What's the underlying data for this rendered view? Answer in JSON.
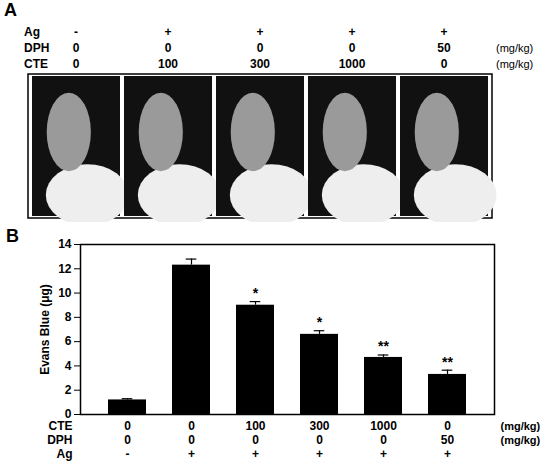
{
  "panel_a": {
    "letter": "A",
    "rows": [
      {
        "label": "Ag",
        "values": [
          "-",
          "+",
          "+",
          "+",
          "+"
        ]
      },
      {
        "label": "DPH",
        "values": [
          0,
          0,
          0,
          0,
          50
        ],
        "unit": "(mg/kg)"
      },
      {
        "label": "CTE",
        "values": [
          0,
          100,
          300,
          1000,
          0
        ],
        "unit": "(mg/kg)"
      }
    ]
  },
  "chart_data": {
    "type": "bar",
    "letter": "B",
    "y_label": "Evans Blue (μg)",
    "categories": [
      null,
      null,
      null,
      null,
      null,
      null
    ],
    "values": [
      1.2,
      12.3,
      9.0,
      6.6,
      4.7,
      3.3
    ],
    "errors": [
      0.1,
      0.5,
      0.3,
      0.3,
      0.2,
      0.35
    ],
    "significance": [
      null,
      null,
      "*",
      "*",
      "**",
      "**"
    ],
    "color": "#000000",
    "ylim": [
      0,
      14
    ],
    "yticks": [
      0,
      2,
      4,
      6,
      8,
      10,
      12,
      14
    ],
    "x_table": [
      {
        "label": "CTE",
        "values": [
          0,
          0,
          100,
          300,
          1000,
          0
        ],
        "unit": "(mg/kg)"
      },
      {
        "label": "DPH",
        "values": [
          0,
          0,
          0,
          0,
          0,
          50
        ],
        "unit": "(mg/kg)"
      },
      {
        "label": "Ag",
        "values": [
          "-",
          "+",
          "+",
          "+",
          "+",
          "+"
        ]
      }
    ]
  }
}
